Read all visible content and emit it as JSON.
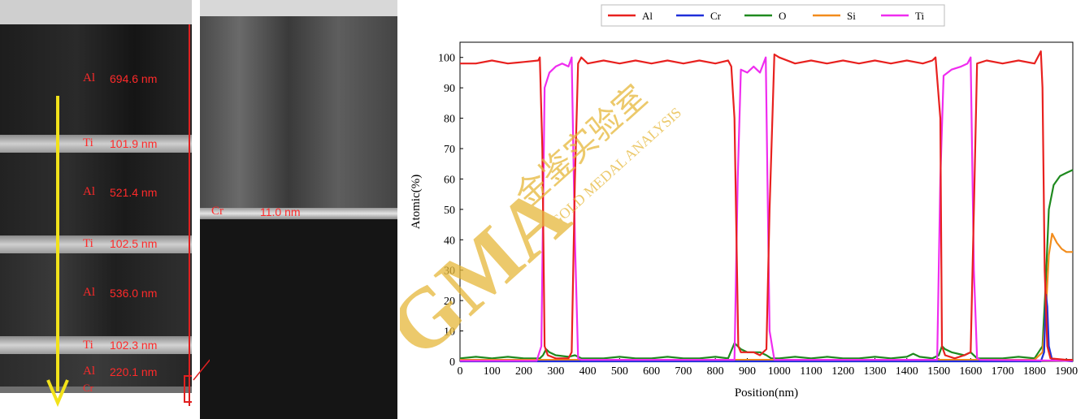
{
  "sem_left": {
    "layers": [
      {
        "element": "Al",
        "thickness": "694.6 nm"
      },
      {
        "element": "Ti",
        "thickness": "101.9 nm"
      },
      {
        "element": "Al",
        "thickness": "521.4 nm"
      },
      {
        "element": "Ti",
        "thickness": "102.5 nm"
      },
      {
        "element": "Al",
        "thickness": "536.0 nm"
      },
      {
        "element": "Ti",
        "thickness": "102.3 nm"
      },
      {
        "element": "Al",
        "thickness": "220.1 nm"
      },
      {
        "element": "Cr",
        "thickness": ""
      }
    ]
  },
  "sem_right": {
    "label_element": "Cr",
    "label_thickness": "11.0 nm"
  },
  "watermark": {
    "logo_text": "GMA",
    "chinese_text": "金鉴实验室",
    "english_text": "GOLD MEDAL ANALYSIS"
  },
  "colors": {
    "Al": "#e8211f",
    "Cr": "#1f2fd9",
    "O": "#1f8a1f",
    "Si": "#f28c1c",
    "Ti": "#ef2cef",
    "annotation": "#ff2a2a",
    "arrow": "#f2e21a",
    "watermark": "#e6b83a"
  },
  "chart_data": {
    "type": "line",
    "xlabel": "Position(nm)",
    "ylabel": "Atomic(%)",
    "xlim": [
      0,
      1920
    ],
    "ylim": [
      0,
      105
    ],
    "xticks": [
      0,
      100,
      200,
      300,
      400,
      500,
      600,
      700,
      800,
      900,
      1000,
      1100,
      1200,
      1300,
      1400,
      1500,
      1600,
      1700,
      1800,
      1900
    ],
    "yticks": [
      0,
      10,
      20,
      30,
      40,
      50,
      60,
      70,
      80,
      90,
      100
    ],
    "legend_position": "top",
    "series": [
      {
        "name": "Al",
        "points": [
          [
            0,
            98
          ],
          [
            50,
            98
          ],
          [
            100,
            99
          ],
          [
            150,
            98
          ],
          [
            200,
            98.5
          ],
          [
            245,
            99
          ],
          [
            250,
            100
          ],
          [
            258,
            70
          ],
          [
            265,
            5
          ],
          [
            275,
            2
          ],
          [
            300,
            1
          ],
          [
            340,
            1
          ],
          [
            350,
            3
          ],
          [
            360,
            60
          ],
          [
            370,
            98
          ],
          [
            380,
            100
          ],
          [
            400,
            98
          ],
          [
            450,
            99
          ],
          [
            500,
            98
          ],
          [
            550,
            99
          ],
          [
            600,
            98
          ],
          [
            650,
            99
          ],
          [
            700,
            98
          ],
          [
            750,
            99
          ],
          [
            800,
            98
          ],
          [
            840,
            99
          ],
          [
            850,
            97
          ],
          [
            860,
            80
          ],
          [
            872,
            5
          ],
          [
            880,
            3
          ],
          [
            900,
            3
          ],
          [
            920,
            3
          ],
          [
            940,
            2
          ],
          [
            960,
            4
          ],
          [
            970,
            50
          ],
          [
            985,
            101
          ],
          [
            1000,
            100
          ],
          [
            1050,
            98
          ],
          [
            1100,
            99
          ],
          [
            1150,
            98
          ],
          [
            1200,
            99
          ],
          [
            1250,
            98
          ],
          [
            1300,
            99
          ],
          [
            1350,
            98
          ],
          [
            1400,
            99
          ],
          [
            1450,
            98
          ],
          [
            1480,
            99
          ],
          [
            1490,
            100
          ],
          [
            1505,
            80
          ],
          [
            1510,
            5
          ],
          [
            1520,
            2
          ],
          [
            1550,
            1
          ],
          [
            1580,
            2
          ],
          [
            1600,
            3
          ],
          [
            1610,
            50
          ],
          [
            1620,
            98
          ],
          [
            1650,
            99
          ],
          [
            1700,
            98
          ],
          [
            1750,
            99
          ],
          [
            1800,
            98
          ],
          [
            1820,
            102
          ],
          [
            1825,
            90
          ],
          [
            1832,
            30
          ],
          [
            1840,
            5
          ],
          [
            1850,
            1
          ],
          [
            1900,
            0.5
          ],
          [
            1920,
            0.5
          ]
        ]
      },
      {
        "name": "Cr",
        "points": [
          [
            0,
            0
          ],
          [
            1000,
            0
          ],
          [
            1820,
            0
          ],
          [
            1830,
            3
          ],
          [
            1836,
            22
          ],
          [
            1840,
            18
          ],
          [
            1845,
            5
          ],
          [
            1855,
            0.5
          ],
          [
            1920,
            0
          ]
        ]
      },
      {
        "name": "O",
        "points": [
          [
            0,
            1
          ],
          [
            50,
            1.5
          ],
          [
            100,
            1
          ],
          [
            150,
            1.5
          ],
          [
            200,
            1
          ],
          [
            250,
            1
          ],
          [
            260,
            2
          ],
          [
            270,
            4
          ],
          [
            280,
            3
          ],
          [
            300,
            2
          ],
          [
            340,
            1.5
          ],
          [
            360,
            2
          ],
          [
            380,
            1
          ],
          [
            400,
            1
          ],
          [
            450,
            1
          ],
          [
            500,
            1.5
          ],
          [
            550,
            1
          ],
          [
            600,
            1
          ],
          [
            650,
            1.5
          ],
          [
            700,
            1
          ],
          [
            750,
            1
          ],
          [
            800,
            1.5
          ],
          [
            840,
            1
          ],
          [
            860,
            6
          ],
          [
            870,
            5
          ],
          [
            880,
            4
          ],
          [
            900,
            3
          ],
          [
            940,
            3
          ],
          [
            960,
            2
          ],
          [
            975,
            1
          ],
          [
            1000,
            1
          ],
          [
            1050,
            1.5
          ],
          [
            1100,
            1
          ],
          [
            1150,
            1.5
          ],
          [
            1200,
            1
          ],
          [
            1250,
            1
          ],
          [
            1300,
            1.5
          ],
          [
            1350,
            1
          ],
          [
            1400,
            1.5
          ],
          [
            1420,
            2.5
          ],
          [
            1440,
            1.5
          ],
          [
            1480,
            1
          ],
          [
            1500,
            2
          ],
          [
            1510,
            5
          ],
          [
            1520,
            4
          ],
          [
            1540,
            3
          ],
          [
            1580,
            2
          ],
          [
            1600,
            3
          ],
          [
            1620,
            1
          ],
          [
            1650,
            1
          ],
          [
            1700,
            1
          ],
          [
            1750,
            1.5
          ],
          [
            1800,
            1
          ],
          [
            1825,
            5
          ],
          [
            1835,
            25
          ],
          [
            1845,
            50
          ],
          [
            1860,
            58
          ],
          [
            1880,
            61
          ],
          [
            1900,
            62
          ],
          [
            1920,
            63
          ]
        ]
      },
      {
        "name": "Si",
        "points": [
          [
            0,
            0.5
          ],
          [
            500,
            0.5
          ],
          [
            1000,
            0.5
          ],
          [
            1800,
            0.5
          ],
          [
            1825,
            3
          ],
          [
            1835,
            15
          ],
          [
            1845,
            35
          ],
          [
            1855,
            42
          ],
          [
            1870,
            39
          ],
          [
            1885,
            37
          ],
          [
            1900,
            36
          ],
          [
            1920,
            36
          ]
        ]
      },
      {
        "name": "Ti",
        "points": [
          [
            0,
            0.2
          ],
          [
            240,
            0.2
          ],
          [
            255,
            5
          ],
          [
            265,
            90
          ],
          [
            280,
            95
          ],
          [
            300,
            97
          ],
          [
            320,
            98
          ],
          [
            340,
            97
          ],
          [
            350,
            100
          ],
          [
            360,
            40
          ],
          [
            370,
            1
          ],
          [
            380,
            0.5
          ],
          [
            860,
            0.5
          ],
          [
            870,
            60
          ],
          [
            880,
            96
          ],
          [
            900,
            95
          ],
          [
            920,
            97
          ],
          [
            940,
            95
          ],
          [
            958,
            100
          ],
          [
            970,
            10
          ],
          [
            985,
            0.5
          ],
          [
            1495,
            0.5
          ],
          [
            1505,
            60
          ],
          [
            1515,
            94
          ],
          [
            1540,
            96
          ],
          [
            1570,
            97
          ],
          [
            1590,
            98
          ],
          [
            1600,
            100
          ],
          [
            1610,
            30
          ],
          [
            1620,
            1
          ],
          [
            1630,
            0.5
          ],
          [
            1920,
            0.2
          ]
        ]
      }
    ]
  }
}
